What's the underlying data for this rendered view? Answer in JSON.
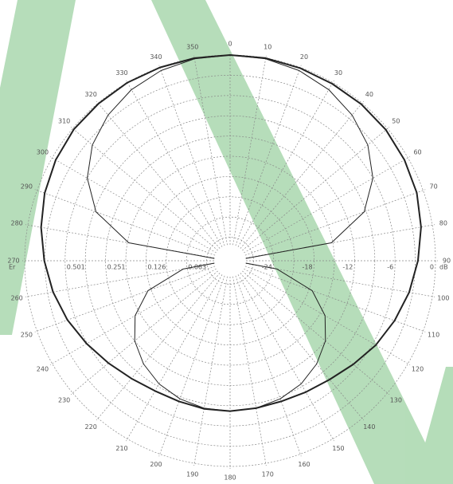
{
  "chart_data": {
    "type": "polar",
    "angles": [
      0,
      10,
      20,
      30,
      40,
      50,
      60,
      70,
      80,
      90,
      100,
      110,
      120,
      130,
      140,
      150,
      160,
      170,
      180,
      190,
      200,
      210,
      220,
      230,
      240,
      250,
      260,
      270,
      280,
      290,
      300,
      310,
      320,
      330,
      340,
      350
    ],
    "series": [
      {
        "color": "#222222",
        "width": 2,
        "values": [
          0,
          0,
          -0.1,
          -0.2,
          -0.2,
          -0.3,
          -0.6,
          -1.0,
          -1.7,
          -2.6,
          -3.5,
          -4.5,
          -5.5,
          -6.6,
          -7.5,
          -8.0,
          -8.3,
          -8.3,
          -8.2,
          -8.2,
          -8.3,
          -8.2,
          -7.7,
          -6.9,
          -5.9,
          -4.8,
          -3.8,
          -2.9,
          -2.0,
          -1.2,
          -0.6,
          -0.2,
          -0.1,
          0,
          0,
          0
        ]
      },
      {
        "color": "#222222",
        "width": 1,
        "values": [
          0,
          -0.1,
          -0.5,
          -1.2,
          -2.3,
          -3.8,
          -6.0,
          -9.3,
          -15.2,
          -30,
          -23.4,
          -17.5,
          -14.2,
          -12.0,
          -10.5,
          -9.4,
          -8.7,
          -8.3,
          -8.2,
          -8.3,
          -8.7,
          -9.4,
          -10.5,
          -12.0,
          -14.2,
          -17.5,
          -23.4,
          -30,
          -15.2,
          -9.3,
          -6.0,
          -3.8,
          -2.3,
          -1.2,
          -0.5,
          -0.1
        ]
      }
    ],
    "rlim": [
      -30,
      0
    ],
    "rticks": [
      -24,
      -18,
      -12,
      -6,
      0
    ],
    "rticks_left": [
      {
        "value": -24,
        "label": "0.063"
      },
      {
        "value": -18,
        "label": "0.126"
      },
      {
        "value": -12,
        "label": "0.251"
      },
      {
        "value": -6,
        "label": "0.501"
      }
    ],
    "unit_right": "dB",
    "unit_left": "Er"
  }
}
